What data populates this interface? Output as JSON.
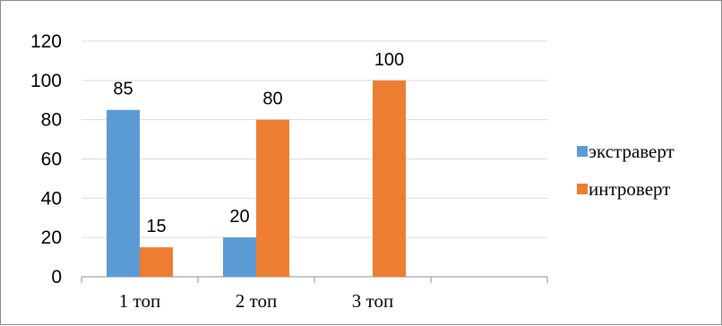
{
  "chart_data": {
    "type": "bar",
    "categories": [
      "1 топ",
      "2 топ",
      "3 топ",
      ""
    ],
    "series": [
      {
        "name": "экстраверт",
        "values": [
          85,
          20,
          null,
          null
        ],
        "labels": [
          "85",
          "20",
          "",
          ""
        ],
        "color": "#5b9bd5"
      },
      {
        "name": "интроверт",
        "values": [
          15,
          80,
          100,
          null
        ],
        "labels": [
          "15",
          "80",
          "100",
          ""
        ],
        "color": "#ed7d31"
      }
    ],
    "yticks": [
      "0",
      "20",
      "40",
      "60",
      "80",
      "100",
      "120"
    ],
    "ylim": [
      0,
      120
    ],
    "grid": true,
    "legend_position": "right",
    "gridline_color": "#d9d9d9",
    "axis_color": "#8c8c8c"
  }
}
